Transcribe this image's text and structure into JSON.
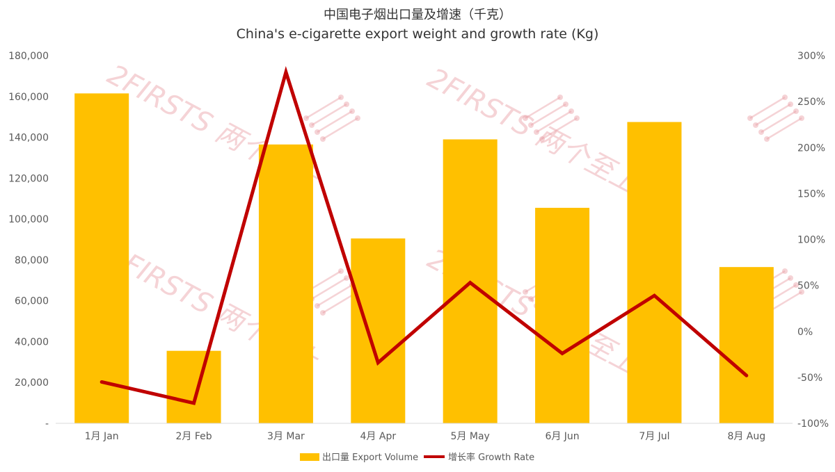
{
  "chart_data": {
    "type": "bar",
    "title": "中国电子烟出口量及增速（千克）",
    "subtitle": "China's e-cigarette export weight and growth rate (Kg)",
    "categories": [
      "1月 Jan",
      "2月 Feb",
      "3月 Mar",
      "4月 Apr",
      "5月 May",
      "6月 Jun",
      "7月 Jul",
      "8月 Aug"
    ],
    "series": [
      {
        "name": "出口量 Export Volume",
        "type": "bar",
        "axis": "left",
        "color": "#FFC000",
        "values": [
          161500,
          35500,
          136500,
          90500,
          139000,
          105500,
          147500,
          76500
        ]
      },
      {
        "name": "增长率 Growth Rate",
        "type": "line",
        "axis": "right",
        "color": "#C00000",
        "values": [
          -0.55,
          -0.78,
          2.82,
          -0.34,
          0.53,
          -0.24,
          0.39,
          -0.48
        ]
      }
    ],
    "y_left": {
      "min": 0,
      "max": 180000,
      "ticks": [
        0,
        20000,
        40000,
        60000,
        80000,
        100000,
        120000,
        140000,
        160000,
        180000
      ],
      "tick_labels": [
        "-",
        "20,000",
        "40,000",
        "60,000",
        "80,000",
        "100,000",
        "120,000",
        "140,000",
        "160,000",
        "180,000"
      ]
    },
    "y_right": {
      "min": -1.0,
      "max": 3.0,
      "ticks": [
        -1.0,
        -0.5,
        0,
        0.5,
        1.0,
        1.5,
        2.0,
        2.5,
        3.0
      ],
      "tick_labels": [
        "-100%",
        "-50%",
        "0%",
        "50%",
        "100%",
        "150%",
        "200%",
        "250%",
        "300%"
      ]
    },
    "grid": false,
    "legend": "bottom-center"
  },
  "watermark": {
    "text": "2FIRSTS 两个至上"
  }
}
